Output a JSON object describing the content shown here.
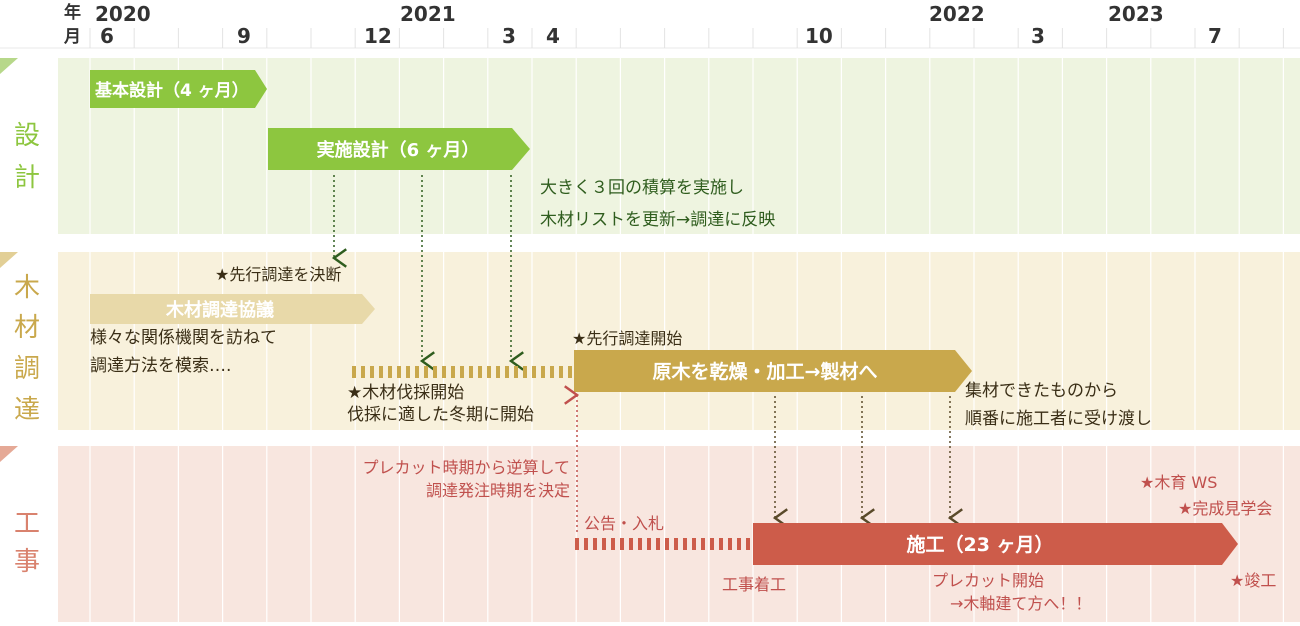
{
  "header": {
    "year_char": "年",
    "month_char": "月",
    "years": [
      "2020",
      "2021",
      "2022",
      "2023"
    ],
    "months": [
      "6",
      "9",
      "12",
      "3",
      "4",
      "10",
      "3",
      "7"
    ]
  },
  "sections": {
    "design": {
      "label_chars": [
        "設",
        "計"
      ],
      "color": "#8dc63f",
      "bg": "#eef4e0"
    },
    "procurement": {
      "label_chars": [
        "木",
        "材",
        "調",
        "達"
      ],
      "color": "#c9a84c",
      "bg": "#f8f1dc"
    },
    "construction": {
      "label_chars": [
        "工",
        "事"
      ],
      "color": "#d9826e",
      "bg": "#f8e6df"
    }
  },
  "bars": {
    "basic_design": "基本設計（4 ヶ月）",
    "detailed_design": "実施設計（6 ヶ月）",
    "timber_talks": "木材調達協議",
    "drying": "原木を乾燥・加工→製材へ",
    "construction": "施工（23 ヶ月）"
  },
  "notes": {
    "estimate": [
      "大きく３回の積算を実施し",
      "木材リストを更新→調達に反映"
    ],
    "advance_decision": "★先行調達を決断",
    "talks_detail": [
      "様々な関係機関を訪ねて",
      "調達方法を模索…."
    ],
    "advance_start": "★先行調達開始",
    "felling": [
      "★木材伐採開始",
      "伐採に適した冬期に開始"
    ],
    "lumber": [
      "集材できたものから",
      "順番に施工者に受け渡し"
    ],
    "precut_back": [
      "プレカット時期から逆算して",
      "調達発注時期を決定"
    ],
    "tender": "公告・入札",
    "start_work": "工事着工",
    "precut_start": [
      "プレカット開始",
      "→木軸建て方へ！！"
    ],
    "ws": "★木育 WS",
    "tour": "★完成見学会",
    "completion": "★竣工"
  },
  "colors": {
    "green": "#8dc63f",
    "green_text": "#2f5d1e",
    "gold": "#c9a84c",
    "gold_text": "#4a3a1a",
    "red": "#cd5c4a",
    "red_text": "#c0504d",
    "grid": "#ffffff"
  }
}
